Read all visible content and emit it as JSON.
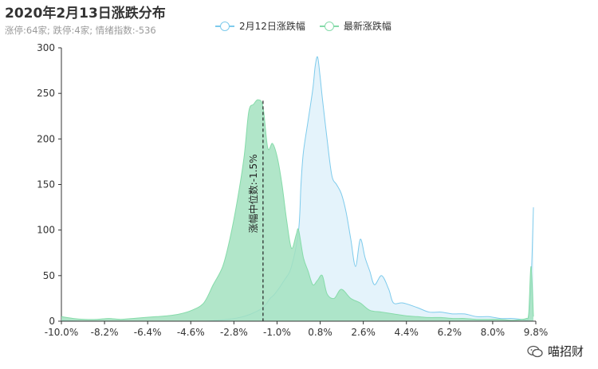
{
  "chart_data": {
    "type": "area",
    "title": "2020年2月13日涨跌分布",
    "subtitle": "涨停:64家; 跌停:4家; 情绪指数:-536",
    "x_tick_labels": [
      "-10.0%",
      "-8.2%",
      "-6.4%",
      "-4.6%",
      "-2.8%",
      "-1.0%",
      "0.8%",
      "2.6%",
      "4.4%",
      "6.2%",
      "8.0%",
      "9.8%"
    ],
    "xlim": [
      -10,
      10
    ],
    "ylim": [
      0,
      300
    ],
    "y_ticks": [
      0,
      50,
      100,
      150,
      200,
      250,
      300
    ],
    "median_label": "涨幅中位数:-1.5%",
    "median_x": -1.5,
    "series": [
      {
        "name": "2月12日涨跌幅",
        "color": "#7ecbec",
        "fill": "#dff1fa",
        "x": [
          -10.0,
          -9.0,
          -8.0,
          -7.0,
          -6.0,
          -5.0,
          -4.0,
          -3.0,
          -2.5,
          -2.0,
          -1.5,
          -1.2,
          -1.0,
          -0.6,
          -0.3,
          0.0,
          0.1,
          0.2,
          0.4,
          0.6,
          0.7,
          0.8,
          0.9,
          1.0,
          1.2,
          1.4,
          1.6,
          1.8,
          2.0,
          2.2,
          2.4,
          2.6,
          2.8,
          3.0,
          3.2,
          3.5,
          3.8,
          4.0,
          4.4,
          5.0,
          5.5,
          6.0,
          6.5,
          7.0,
          7.5,
          8.0,
          8.5,
          9.0,
          9.4,
          9.6,
          9.7,
          9.8,
          9.9
        ],
        "values": [
          1,
          0,
          0,
          0,
          0,
          0,
          0,
          2,
          4,
          8,
          15,
          25,
          30,
          45,
          60,
          100,
          150,
          185,
          220,
          255,
          280,
          290,
          270,
          245,
          200,
          160,
          150,
          140,
          120,
          90,
          60,
          90,
          70,
          55,
          40,
          50,
          35,
          20,
          20,
          15,
          10,
          10,
          8,
          8,
          5,
          5,
          3,
          3,
          2,
          1,
          5,
          40,
          125
        ]
      },
      {
        "name": "最新涨跌幅",
        "color": "#86dbaa",
        "fill": "#a3e2c0",
        "x": [
          -10.0,
          -9.5,
          -9.0,
          -8.5,
          -8.0,
          -7.5,
          -7.0,
          -6.5,
          -6.0,
          -5.5,
          -5.0,
          -4.5,
          -4.0,
          -3.6,
          -3.2,
          -2.9,
          -2.6,
          -2.3,
          -2.1,
          -1.9,
          -1.7,
          -1.5,
          -1.3,
          -1.1,
          -0.9,
          -0.7,
          -0.5,
          -0.3,
          -0.1,
          0.0,
          0.2,
          0.4,
          0.6,
          0.8,
          1.0,
          1.2,
          1.5,
          1.8,
          2.2,
          2.6,
          3.0,
          3.5,
          4.0,
          4.5,
          5.0,
          5.5,
          6.0,
          6.5,
          7.0,
          7.5,
          8.0,
          8.5,
          9.0,
          9.4,
          9.6,
          9.7,
          9.8,
          9.9
        ],
        "values": [
          5,
          3,
          2,
          2,
          3,
          2,
          3,
          4,
          5,
          6,
          8,
          12,
          20,
          40,
          60,
          90,
          130,
          180,
          230,
          238,
          243,
          235,
          190,
          195,
          180,
          150,
          110,
          80,
          95,
          100,
          70,
          55,
          40,
          45,
          50,
          30,
          25,
          35,
          25,
          20,
          12,
          10,
          8,
          6,
          5,
          4,
          4,
          3,
          3,
          2,
          2,
          2,
          1,
          2,
          3,
          8,
          60,
          5
        ]
      }
    ]
  },
  "watermark": {
    "text": "喵招财",
    "icon": "wechat-icon"
  }
}
